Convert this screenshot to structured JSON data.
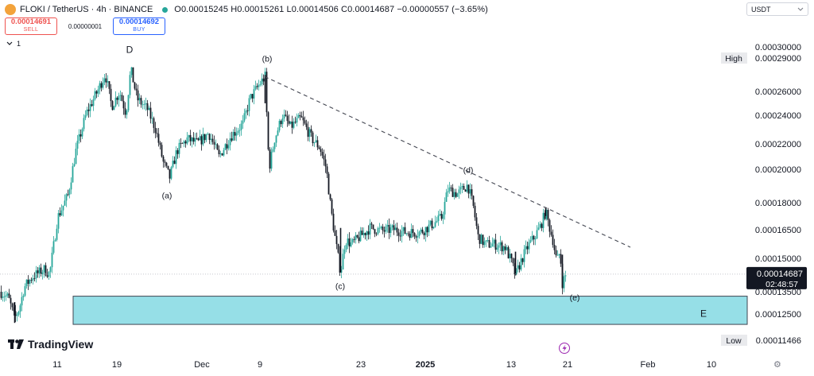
{
  "header": {
    "symbol": "FLOKI / TetherUS · 4h · BINANCE",
    "ohlc": "O0.00015245 H0.00015261 L0.00014506 C0.00014687 −0.00000557 (−3.65%)",
    "sell_price": "0.00014691",
    "sell_label": "SELL",
    "spread": "0.00000001",
    "buy_price": "0.00014692",
    "buy_label": "BUY",
    "indicator_count": "1",
    "currency": "USDT"
  },
  "footer": {
    "brand": "TradingView"
  },
  "colors": {
    "up": "#26a69a",
    "down": "#131722",
    "zone_fill": "#96dfe7",
    "trendline": "#434651",
    "price_tag_bg": "#131722"
  },
  "icons": [
    "symbol-logo-icon",
    "live-dot-icon",
    "chevron-down-icon",
    "tradingview-logo-icon",
    "flash-icon",
    "gear-icon"
  ],
  "chart_data": {
    "type": "candlestick",
    "timeframe": "4h",
    "y_axis": {
      "ticks": [
        "0.00030000",
        "0.00029000",
        "0.00026000",
        "0.00024000",
        "0.00022000",
        "0.00020000",
        "0.00018000",
        "0.00016500",
        "0.00015000",
        "0.00013500",
        "0.00012500",
        "0.00011466"
      ],
      "range": [
        0.00011,
        0.000305
      ]
    },
    "x_axis": {
      "ticks": [
        "11",
        "19",
        "Dec",
        "9",
        "23",
        "2025",
        "13",
        "21",
        "Feb",
        "10"
      ],
      "bold_ticks": [
        "2025"
      ]
    },
    "price_path": [
      [
        0,
        0.000135
      ],
      [
        10,
        0.000131
      ],
      [
        18,
        0.000117
      ],
      [
        24,
        0.000124
      ],
      [
        30,
        0.000138
      ],
      [
        40,
        0.000145
      ],
      [
        55,
        0.00015
      ],
      [
        62,
        0.000147
      ],
      [
        72,
        0.000185
      ],
      [
        85,
        0.0002
      ],
      [
        95,
        0.00023
      ],
      [
        108,
        0.000255
      ],
      [
        122,
        0.00027
      ],
      [
        132,
        0.000282
      ],
      [
        140,
        0.00026
      ],
      [
        150,
        0.00027
      ],
      [
        158,
        0.000255
      ],
      [
        164,
        0.000285
      ],
      [
        172,
        0.000265
      ],
      [
        185,
        0.000258
      ],
      [
        195,
        0.000245
      ],
      [
        205,
        0.000222
      ],
      [
        213,
        0.000212
      ],
      [
        222,
        0.00023
      ],
      [
        235,
        0.000238
      ],
      [
        248,
        0.000235
      ],
      [
        262,
        0.000242
      ],
      [
        275,
        0.000226
      ],
      [
        290,
        0.00024
      ],
      [
        305,
        0.000248
      ],
      [
        314,
        0.000265
      ],
      [
        326,
        0.000275
      ],
      [
        333,
        0.00028
      ],
      [
        338,
        0.000218
      ],
      [
        345,
        0.000238
      ],
      [
        355,
        0.000254
      ],
      [
        365,
        0.000246
      ],
      [
        378,
        0.000252
      ],
      [
        392,
        0.000238
      ],
      [
        402,
        0.000232
      ],
      [
        410,
        0.000218
      ],
      [
        416,
        0.00019
      ],
      [
        422,
        0.000168
      ],
      [
        428,
        0.000148
      ],
      [
        434,
        0.00017
      ],
      [
        442,
        0.000167
      ],
      [
        452,
        0.000172
      ],
      [
        465,
        0.000178
      ],
      [
        480,
        0.000176
      ],
      [
        495,
        0.000177
      ],
      [
        510,
        0.000175
      ],
      [
        528,
        0.000175
      ],
      [
        545,
        0.000181
      ],
      [
        555,
        0.000185
      ],
      [
        563,
        0.000204
      ],
      [
        575,
        0.000201
      ],
      [
        588,
        0.000207
      ],
      [
        595,
        0.000192
      ],
      [
        601,
        0.000172
      ],
      [
        610,
        0.000167
      ],
      [
        622,
        0.000167
      ],
      [
        635,
        0.000165
      ],
      [
        643,
        0.000155
      ],
      [
        648,
        0.000146
      ],
      [
        656,
        0.000157
      ],
      [
        664,
        0.000166
      ],
      [
        672,
        0.000172
      ],
      [
        680,
        0.00018
      ],
      [
        686,
        0.000189
      ],
      [
        690,
        0.00018
      ],
      [
        695,
        0.00017
      ],
      [
        700,
        0.000155
      ],
      [
        704,
        0.000162
      ],
      [
        707,
        0.000141
      ],
      [
        712,
        0.000147
      ]
    ],
    "wave_labels": [
      {
        "label": "D",
        "x_index": 163,
        "price": 0.000296
      },
      {
        "label": "(a)",
        "x_index": 210,
        "price": 0.000198
      },
      {
        "label": "(b)",
        "x_index": 336,
        "price": 0.00029
      },
      {
        "label": "(c)",
        "x_index": 428,
        "price": 0.000137
      },
      {
        "label": "(d)",
        "x_index": 589,
        "price": 0.000215
      },
      {
        "label": "(e)",
        "x_index": 723,
        "price": 0.000129
      },
      {
        "label": "E",
        "x_index": 885,
        "price": 0.000118
      }
    ],
    "trendline": {
      "from": [
        333,
        0.00028
      ],
      "to": [
        793,
        0.000165
      ],
      "style": "dashed"
    },
    "zone": {
      "x_from": 92,
      "x_to": 940,
      "price_top": 0.000132,
      "price_bottom": 0.000113
    },
    "price_levels": [
      {
        "label": "High",
        "value": "0.00029000"
      },
      {
        "label": "Low",
        "value": "0.00011466"
      }
    ],
    "last_price": {
      "value": "0.00014687",
      "countdown": "02:48:57"
    },
    "grid": false
  }
}
